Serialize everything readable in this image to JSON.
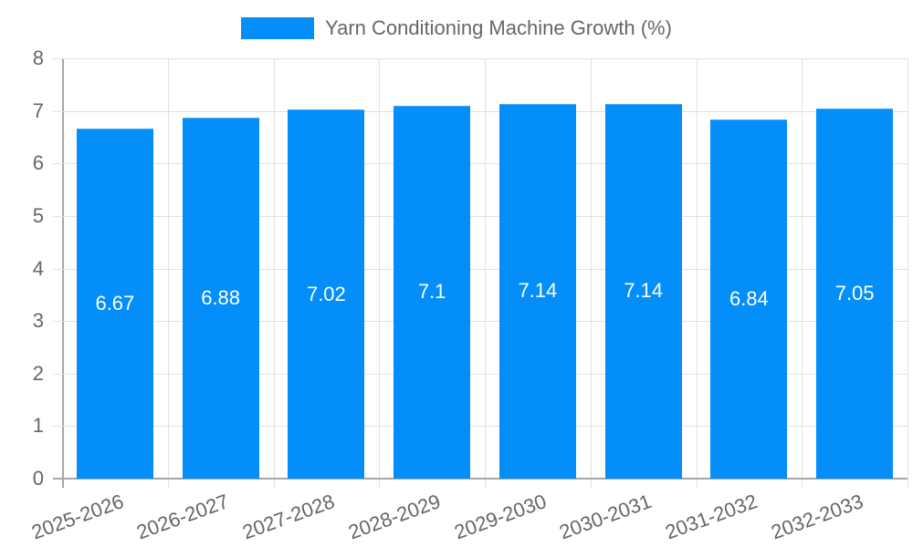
{
  "chart_data": {
    "type": "bar",
    "title": "",
    "legend": [
      "Yarn Conditioning Machine Growth (%)"
    ],
    "legend_position": "top",
    "categories": [
      "2025-2026",
      "2026-2027",
      "2027-2028",
      "2028-2029",
      "2029-2030",
      "2030-2031",
      "2031-2032",
      "2032-2033"
    ],
    "series": [
      {
        "name": "Yarn Conditioning Machine Growth (%)",
        "values": [
          6.67,
          6.88,
          7.02,
          7.1,
          7.14,
          7.14,
          6.84,
          7.05
        ],
        "color": "#038ef9"
      }
    ],
    "data_labels": [
      "6.67",
      "6.88",
      "7.02",
      "7.1",
      "7.14",
      "7.14",
      "6.84",
      "7.05"
    ],
    "xlabel": "",
    "ylabel": "",
    "ylim": [
      0,
      8
    ],
    "yticks": [
      "0",
      "1",
      "2",
      "3",
      "4",
      "5",
      "6",
      "7",
      "8"
    ],
    "grid": true
  },
  "legend": {
    "label": "Yarn Conditioning Machine Growth (%)"
  }
}
